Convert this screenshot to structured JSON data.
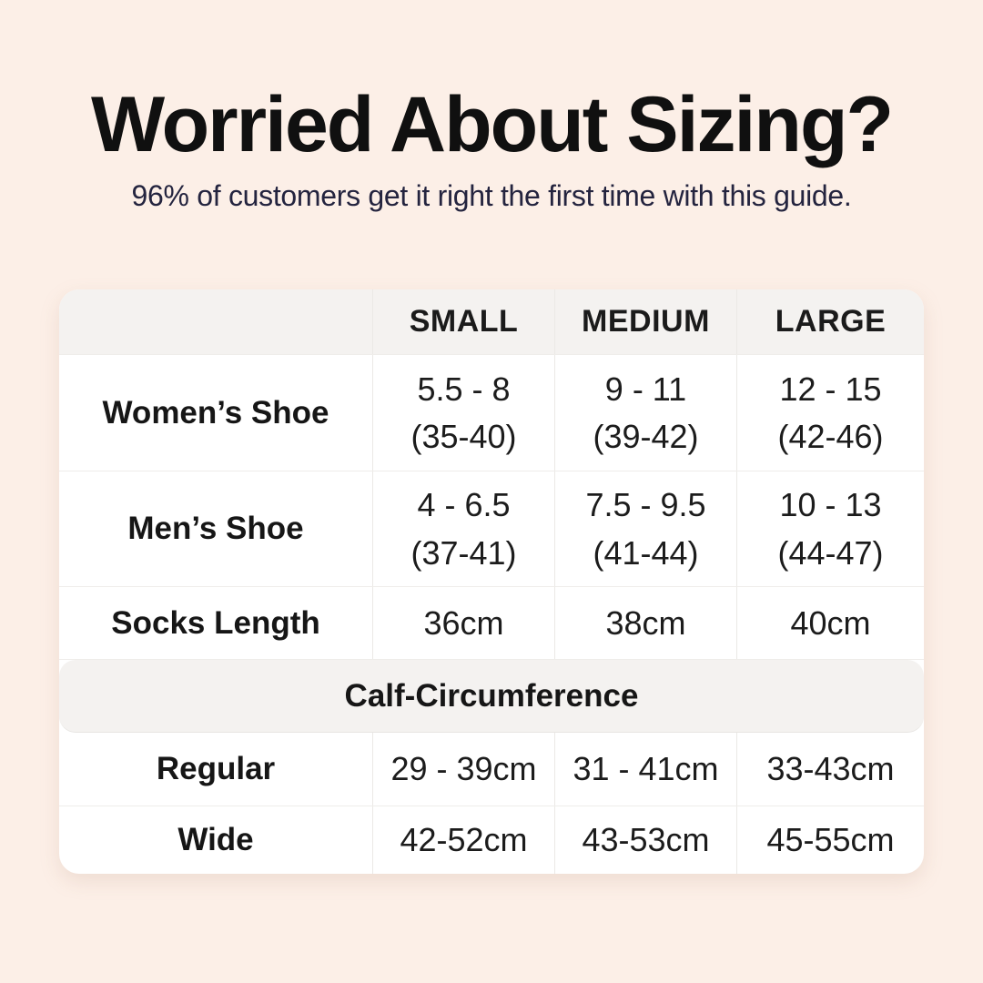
{
  "header": {
    "title": "Worried About Sizing?",
    "subtitle": "96% of customers get it right the first time with this guide."
  },
  "colors": {
    "page_background": "#fcefe7",
    "card_background": "#ffffff",
    "band_background": "#f4f2f0",
    "title_text": "#101010",
    "subtitle_text": "#24243f",
    "table_text": "#1c1c1c"
  },
  "table": {
    "columns": [
      "SMALL",
      "MEDIUM",
      "LARGE"
    ],
    "rows": [
      {
        "label": "Women’s Shoe",
        "cells": [
          {
            "main": "5.5 - 8",
            "sub": "(35-40)"
          },
          {
            "main": "9 - 11",
            "sub": "(39-42)"
          },
          {
            "main": "12 - 15",
            "sub": "(42-46)"
          }
        ]
      },
      {
        "label": "Men’s Shoe",
        "cells": [
          {
            "main": "4 - 6.5",
            "sub": "(37-41)"
          },
          {
            "main": "7.5 - 9.5",
            "sub": "(41-44)"
          },
          {
            "main": "10 - 13",
            "sub": "(44-47)"
          }
        ]
      },
      {
        "label": "Socks Length",
        "cells": [
          {
            "main": "36cm",
            "sub": ""
          },
          {
            "main": "38cm",
            "sub": ""
          },
          {
            "main": "40cm",
            "sub": ""
          }
        ]
      }
    ],
    "section_header": "Calf-Circumference",
    "section_rows": [
      {
        "label": "Regular",
        "cells": [
          {
            "main": "29 - 39cm"
          },
          {
            "main": "31 - 41cm"
          },
          {
            "main": "33-43cm"
          }
        ]
      },
      {
        "label": "Wide",
        "cells": [
          {
            "main": "42-52cm"
          },
          {
            "main": "43-53cm"
          },
          {
            "main": "45-55cm"
          }
        ]
      }
    ]
  },
  "chart_data": {
    "type": "table",
    "title": "Worried About Sizing?",
    "subtitle": "96% of customers get it right the first time with this guide.",
    "columns": [
      "",
      "SMALL",
      "MEDIUM",
      "LARGE"
    ],
    "rows": [
      [
        "Women’s Shoe",
        "5.5 - 8 (35-40)",
        "9 - 11 (39-42)",
        "12 - 15 (42-46)"
      ],
      [
        "Men’s Shoe",
        "4 - 6.5 (37-41)",
        "7.5 - 9.5 (41-44)",
        "10 - 13 (44-47)"
      ],
      [
        "Socks Length",
        "36cm",
        "38cm",
        "40cm"
      ],
      [
        "Calf-Circumference",
        "",
        "",
        ""
      ],
      [
        "Regular",
        "29 - 39cm",
        "31 - 41cm",
        "33-43cm"
      ],
      [
        "Wide",
        "42-52cm",
        "43-53cm",
        "45-55cm"
      ]
    ],
    "layout": {
      "section_row_index": 3,
      "grid": "light-gray dividers",
      "header_band": true
    }
  }
}
